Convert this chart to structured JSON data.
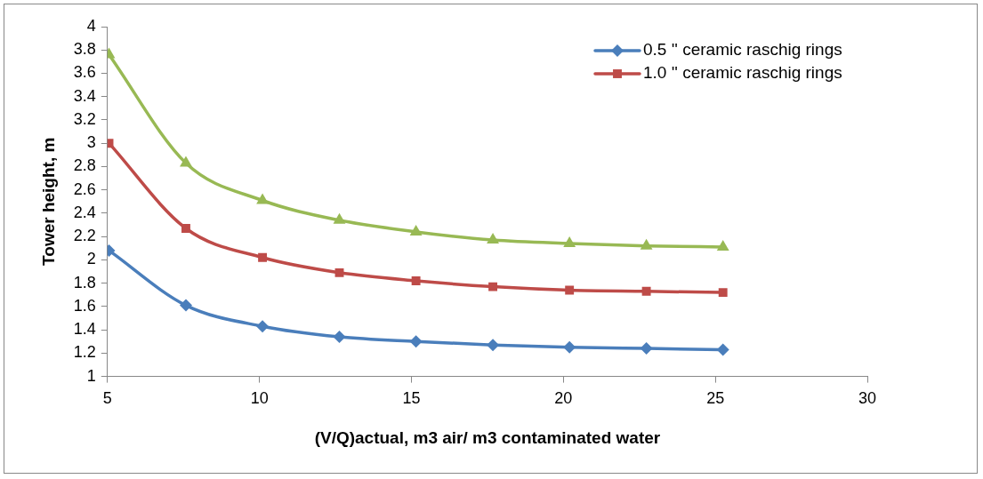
{
  "chart_data": {
    "type": "line",
    "xlabel": "(V/Q)actual, m3 air/ m3 contaminated water",
    "ylabel": "Tower height, m",
    "x": [
      5.05,
      7.58,
      10.1,
      12.63,
      15.15,
      17.68,
      20.2,
      22.73,
      25.25
    ],
    "xlim": [
      5,
      30
    ],
    "xticks": [
      5,
      10,
      15,
      20,
      25,
      30
    ],
    "ylim": [
      1,
      4
    ],
    "yticks": [
      {
        "value": 1,
        "label": "1"
      },
      {
        "value": 1.2,
        "label": "1.2"
      },
      {
        "value": 1.4,
        "label": "1.4"
      },
      {
        "value": 1.6,
        "label": "1.6"
      },
      {
        "value": 1.8,
        "label": "1.8"
      },
      {
        "value": 2,
        "label": "2"
      },
      {
        "value": 2.2,
        "label": "2.2"
      },
      {
        "value": 2.4,
        "label": "2.4"
      },
      {
        "value": 2.6,
        "label": "2.6"
      },
      {
        "value": 2.8,
        "label": "2.8"
      },
      {
        "value": 3,
        "label": "3"
      },
      {
        "value": 3.2,
        "label": "3.2"
      },
      {
        "value": 3.4,
        "label": "3.4"
      },
      {
        "value": 3.6,
        "label": "3.6"
      },
      {
        "value": 3.8,
        "label": "3.8"
      },
      {
        "value": 4,
        "label": "4"
      }
    ],
    "grid": false,
    "legend": "top right",
    "line_style": "solid",
    "series": [
      {
        "name": "0.5 '' ceramic raschig rings",
        "color": "#4a7ebb",
        "marker": "diamond",
        "values": [
          2.08,
          1.61,
          1.43,
          1.34,
          1.3,
          1.27,
          1.25,
          1.24,
          1.23
        ]
      },
      {
        "name": "1.0 '' ceramic raschig rings",
        "color": "#be4b48",
        "marker": "square",
        "values": [
          3.0,
          2.27,
          2.02,
          1.89,
          1.82,
          1.77,
          1.74,
          1.73,
          1.72
        ]
      },
      {
        "color": "#98b954",
        "marker": "triangle",
        "values": [
          3.76,
          2.83,
          2.51,
          2.34,
          2.24,
          2.17,
          2.14,
          2.12,
          2.11
        ]
      }
    ]
  }
}
